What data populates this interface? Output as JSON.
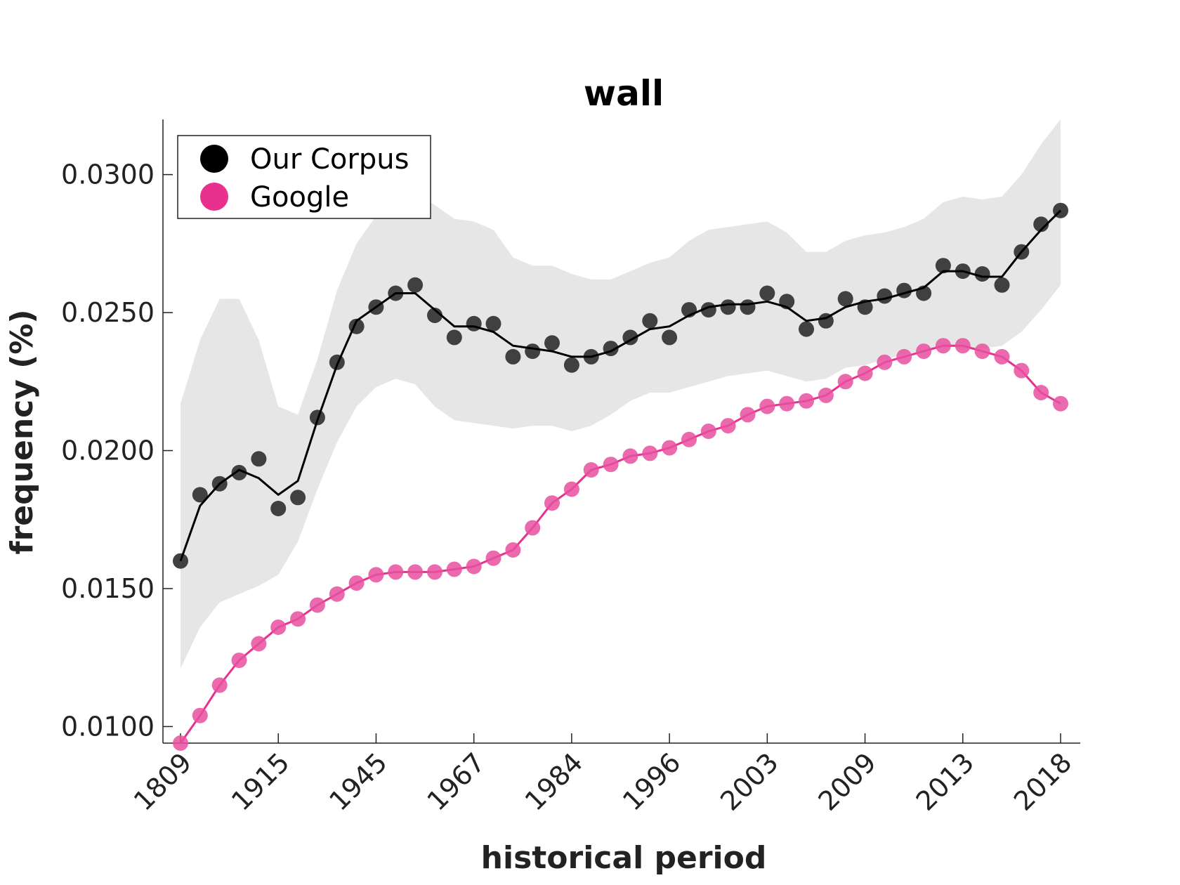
{
  "chart_data": {
    "type": "line",
    "title": "wall",
    "xlabel": "historical period",
    "ylabel": "frequency (%)",
    "ylim": [
      0.0094,
      0.032
    ],
    "yticks": [
      "0.0100",
      "0.0150",
      "0.0200",
      "0.0250",
      "0.0300"
    ],
    "ytick_values": [
      0.01,
      0.015,
      0.02,
      0.025,
      0.03
    ],
    "xticks": [
      "1809",
      "1915",
      "1945",
      "1967",
      "1984",
      "1996",
      "2003",
      "2009",
      "2013",
      "2018"
    ],
    "xtick_indices": [
      0,
      5,
      10,
      15,
      20,
      25,
      30,
      35,
      40,
      45
    ],
    "n_points": 46,
    "legend": {
      "placement": "top-left",
      "entries": [
        "Our Corpus",
        "Google"
      ]
    },
    "grid": false,
    "series": [
      {
        "name": "Our Corpus",
        "color": "#000000",
        "marker_color": "#404040",
        "points": [
          0.016,
          0.0184,
          0.0188,
          0.0192,
          0.0197,
          0.0179,
          0.0183,
          0.0212,
          0.0232,
          0.0245,
          0.0252,
          0.0257,
          0.026,
          0.0249,
          0.0241,
          0.0246,
          0.0246,
          0.0234,
          0.0236,
          0.0239,
          0.0231,
          0.0234,
          0.0237,
          0.0241,
          0.0247,
          0.0241,
          0.0251,
          0.0251,
          0.0252,
          0.0252,
          0.0257,
          0.0254,
          0.0244,
          0.0247,
          0.0255,
          0.0252,
          0.0256,
          0.0258,
          0.0257,
          0.0267,
          0.0265,
          0.0264,
          0.026,
          0.0272,
          0.0282,
          0.0287
        ],
        "line": [
          0.016,
          0.018,
          0.0188,
          0.0193,
          0.019,
          0.0184,
          0.0189,
          0.0211,
          0.0231,
          0.0247,
          0.0252,
          0.0257,
          0.0257,
          0.0251,
          0.0245,
          0.0245,
          0.0243,
          0.0238,
          0.0237,
          0.0236,
          0.0234,
          0.0234,
          0.0236,
          0.024,
          0.0244,
          0.0245,
          0.0249,
          0.0252,
          0.0253,
          0.0253,
          0.0254,
          0.0252,
          0.0247,
          0.0248,
          0.0252,
          0.0254,
          0.0255,
          0.0257,
          0.0259,
          0.0265,
          0.0265,
          0.0263,
          0.0263,
          0.0272,
          0.028,
          0.0287
        ],
        "band_upper": [
          0.0217,
          0.024,
          0.0255,
          0.0255,
          0.024,
          0.0216,
          0.0213,
          0.0233,
          0.0258,
          0.0275,
          0.0285,
          0.029,
          0.0293,
          0.0289,
          0.0284,
          0.0283,
          0.028,
          0.027,
          0.0267,
          0.0267,
          0.0264,
          0.0262,
          0.0262,
          0.0265,
          0.0268,
          0.027,
          0.0276,
          0.028,
          0.0281,
          0.0282,
          0.0283,
          0.0279,
          0.0272,
          0.0272,
          0.0276,
          0.0278,
          0.0279,
          0.0281,
          0.0284,
          0.029,
          0.0292,
          0.0291,
          0.0292,
          0.03,
          0.0311,
          0.032
        ],
        "band_lower": [
          0.0121,
          0.0136,
          0.0145,
          0.0148,
          0.0151,
          0.0155,
          0.0167,
          0.0186,
          0.0203,
          0.0216,
          0.0223,
          0.0226,
          0.0224,
          0.0216,
          0.0211,
          0.021,
          0.0209,
          0.0208,
          0.0209,
          0.0209,
          0.0207,
          0.0209,
          0.0213,
          0.0218,
          0.0221,
          0.0221,
          0.0223,
          0.0225,
          0.0227,
          0.0228,
          0.0229,
          0.0227,
          0.0225,
          0.0226,
          0.023,
          0.0231,
          0.0233,
          0.0235,
          0.0236,
          0.0238,
          0.0237,
          0.0237,
          0.0238,
          0.0243,
          0.0251,
          0.026
        ]
      },
      {
        "name": "Google",
        "color": "#e8318f",
        "marker_color": "#e8509f",
        "points": [
          0.0094,
          0.0104,
          0.0115,
          0.0124,
          0.013,
          0.0136,
          0.0139,
          0.0144,
          0.0148,
          0.0152,
          0.0155,
          0.0156,
          0.0156,
          0.0156,
          0.0157,
          0.0158,
          0.0161,
          0.0164,
          0.0172,
          0.0181,
          0.0186,
          0.0193,
          0.0195,
          0.0198,
          0.0199,
          0.0201,
          0.0204,
          0.0207,
          0.0209,
          0.0213,
          0.0216,
          0.0217,
          0.0218,
          0.022,
          0.0225,
          0.0228,
          0.0232,
          0.0234,
          0.0236,
          0.0238,
          0.0238,
          0.0236,
          0.0234,
          0.0229,
          0.0221,
          0.0217
        ]
      }
    ]
  }
}
